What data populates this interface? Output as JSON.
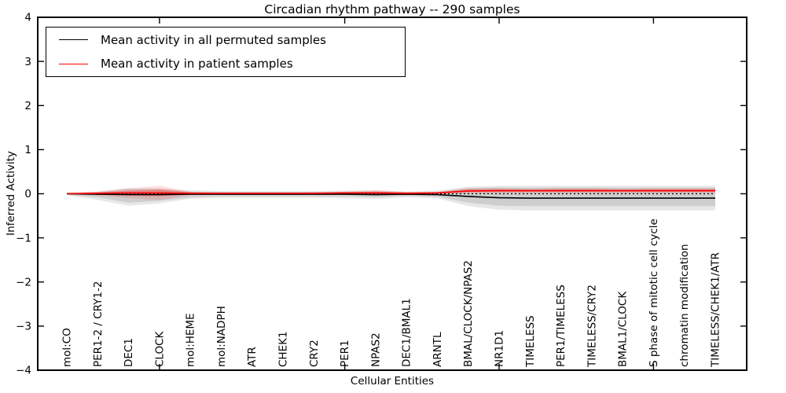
{
  "title": "Circadian rhythm pathway -- 290 samples",
  "axes": {
    "xlabel": "Cellular Entities",
    "ylabel": "Inferred Activity"
  },
  "legend": {
    "items": [
      {
        "label": "Mean activity in all permuted samples",
        "color": "#000000"
      },
      {
        "label": "Mean activity in patient samples",
        "color": "#ff0000"
      }
    ]
  },
  "chart_data": {
    "type": "line",
    "title": "Circadian rhythm pathway -- 290 samples",
    "xlabel": "Cellular Entities",
    "ylabel": "Inferred Activity",
    "ylim": [
      -4,
      4
    ],
    "yticks": [
      -4,
      -3,
      -2,
      -1,
      0,
      1,
      2,
      3,
      4
    ],
    "grid": false,
    "legend_position": "upper left",
    "categories": [
      "mol:CO",
      "PER1-2 / CRY1-2",
      "DEC1",
      "CLOCK",
      "mol:HEME",
      "mol:NADPH",
      "ATR",
      "CHEK1",
      "CRY2",
      "PER1",
      "NPAS2",
      "DEC1/BMAL1",
      "ARNTL",
      "BMAL/CLOCK/NPAS2",
      "NR1D1",
      "TIMELESS",
      "PER1/TIMELESS",
      "TIMELESS/CRY2",
      "BMAL1/CLOCK",
      "S phase of mitotic cell cycle",
      "chromatin modification",
      "TIMELESS/CHEK1/ATR"
    ],
    "xtick_indices": [
      3,
      9,
      14,
      19
    ],
    "series": [
      {
        "name": "Mean activity in all permuted samples",
        "color": "#000000",
        "style": "solid",
        "values": [
          0.0,
          -0.01,
          -0.02,
          -0.02,
          -0.01,
          -0.01,
          -0.01,
          -0.01,
          -0.01,
          -0.01,
          -0.02,
          -0.01,
          -0.02,
          -0.06,
          -0.09,
          -0.1,
          -0.1,
          -0.1,
          -0.1,
          -0.1,
          -0.1,
          -0.1
        ]
      },
      {
        "name": "zero reference",
        "color": "#000000",
        "style": "dotted",
        "values": [
          0,
          0,
          0,
          0,
          0,
          0,
          0,
          0,
          0,
          0,
          0,
          0,
          0,
          0,
          0,
          0,
          0,
          0,
          0,
          0,
          0,
          0
        ]
      },
      {
        "name": "Mean activity in patient samples",
        "color": "#ff0000",
        "style": "solid",
        "values": [
          0.0,
          0.01,
          0.02,
          0.02,
          0.01,
          0.01,
          0.01,
          0.01,
          0.01,
          0.02,
          0.02,
          0.01,
          0.02,
          0.06,
          0.07,
          0.07,
          0.07,
          0.07,
          0.07,
          0.07,
          0.07,
          0.07
        ]
      }
    ],
    "bands": [
      {
        "name": "permuted-range-outer",
        "color": "rgba(120,120,120,0.18)",
        "upper": [
          0.03,
          0.05,
          0.13,
          0.12,
          0.08,
          0.06,
          0.06,
          0.06,
          0.06,
          0.07,
          0.08,
          0.05,
          0.07,
          0.16,
          0.18,
          0.18,
          0.18,
          0.18,
          0.18,
          0.18,
          0.18,
          0.18
        ],
        "lower": [
          -0.03,
          -0.14,
          -0.27,
          -0.22,
          -0.11,
          -0.09,
          -0.09,
          -0.09,
          -0.09,
          -0.1,
          -0.12,
          -0.08,
          -0.1,
          -0.28,
          -0.36,
          -0.38,
          -0.38,
          -0.38,
          -0.38,
          -0.38,
          -0.38,
          -0.38
        ]
      },
      {
        "name": "permuted-range-inner",
        "color": "rgba(120,120,120,0.22)",
        "upper": [
          0.02,
          0.03,
          0.1,
          0.09,
          0.05,
          0.04,
          0.04,
          0.04,
          0.04,
          0.04,
          0.05,
          0.03,
          0.04,
          0.12,
          0.14,
          0.14,
          0.14,
          0.14,
          0.14,
          0.14,
          0.14,
          0.14
        ],
        "lower": [
          -0.02,
          -0.08,
          -0.2,
          -0.16,
          -0.08,
          -0.06,
          -0.06,
          -0.06,
          -0.06,
          -0.06,
          -0.08,
          -0.05,
          -0.07,
          -0.2,
          -0.27,
          -0.28,
          -0.28,
          -0.28,
          -0.28,
          -0.28,
          -0.28,
          -0.28
        ]
      },
      {
        "name": "patient-range-outer",
        "color": "rgba(255,30,30,0.15)",
        "upper": [
          0.01,
          0.05,
          0.12,
          0.18,
          0.04,
          0.02,
          0.02,
          0.02,
          0.03,
          0.05,
          0.08,
          0.04,
          0.04,
          0.13,
          0.13,
          0.11,
          0.13,
          0.13,
          0.11,
          0.12,
          0.12,
          0.12
        ],
        "lower": [
          -0.01,
          -0.04,
          -0.1,
          -0.14,
          -0.03,
          -0.01,
          -0.01,
          -0.01,
          -0.01,
          -0.02,
          -0.04,
          -0.01,
          0.0,
          0.01,
          0.02,
          0.02,
          0.02,
          0.02,
          0.02,
          0.02,
          0.02,
          0.02
        ]
      },
      {
        "name": "patient-range-inner",
        "color": "rgba(255,30,30,0.30)",
        "upper": [
          0.01,
          0.03,
          0.07,
          0.1,
          0.03,
          0.02,
          0.02,
          0.02,
          0.02,
          0.03,
          0.05,
          0.03,
          0.03,
          0.1,
          0.1,
          0.09,
          0.1,
          0.1,
          0.09,
          0.1,
          0.1,
          0.1
        ],
        "lower": [
          -0.01,
          -0.02,
          -0.04,
          -0.06,
          -0.01,
          0.0,
          0.0,
          0.0,
          0.0,
          0.0,
          -0.01,
          0.0,
          0.01,
          0.04,
          0.04,
          0.04,
          0.04,
          0.04,
          0.04,
          0.04,
          0.04,
          0.04
        ]
      }
    ]
  }
}
